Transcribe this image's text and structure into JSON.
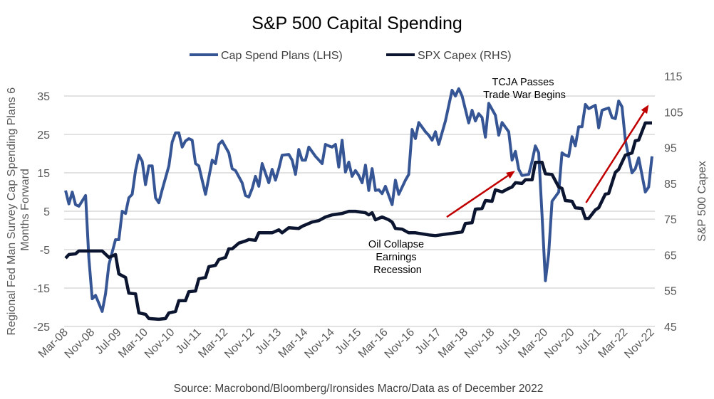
{
  "chart_data": {
    "type": "line",
    "title": "S&P 500 Capital Spending",
    "source": "Source: Macrobond/Bloomberg/Ironsides Macro/Data as of December 2022",
    "x_unit": "months since Mar-08",
    "x_tick_labels": [
      "Mar-08",
      "Nov-08",
      "Jul-09",
      "Mar-10",
      "Nov-10",
      "Jul-11",
      "Mar-12",
      "Nov-12",
      "Jul-13",
      "Mar-14",
      "Nov-14",
      "Jul-15",
      "Mar-16",
      "Nov-16",
      "Jul-17",
      "Mar-18",
      "Nov-18",
      "Jul-19",
      "Mar-20",
      "Nov-20",
      "Jul-21",
      "Mar-22",
      "Nov-22"
    ],
    "x_tick_step_months": 8,
    "xlim": [
      0,
      176
    ],
    "y_left": {
      "label_lines": [
        "Regional Fed Man Survey Cap Spending Plans 6",
        "Months Forward"
      ],
      "ticks": [
        "35",
        "25",
        "15",
        "5",
        "-5",
        "-15",
        "-25"
      ],
      "ylim": [
        -25,
        35
      ]
    },
    "y_right": {
      "label": "S&P 500 Capex",
      "ticks": [
        "115",
        "105",
        "95",
        "85",
        "75",
        "65",
        "55",
        "45"
      ],
      "ylim": [
        45,
        115
      ]
    },
    "grid": true,
    "legend_position": "top-center",
    "colors": {
      "cap_spend": "#365594",
      "spx": "#0b1530",
      "arrow": "#c00000",
      "grid": "#d9d9d9"
    },
    "series": [
      {
        "name": "Cap Spend Plans (LHS)",
        "axis": "left",
        "x": [
          0,
          1,
          2,
          3,
          4,
          6,
          7,
          8,
          9,
          11,
          12,
          13,
          15,
          16,
          17,
          18,
          19,
          20,
          21,
          22,
          23,
          24,
          25,
          26,
          27,
          28,
          29,
          31,
          32,
          33,
          34,
          35,
          36,
          37,
          38,
          39,
          40,
          42,
          44,
          45,
          46,
          47,
          49,
          50,
          51,
          53,
          54,
          55,
          56,
          57,
          58,
          59,
          61,
          62,
          63,
          64,
          65,
          67,
          68,
          69,
          70,
          71,
          72,
          73,
          75,
          77,
          78,
          79,
          80,
          81,
          82,
          83,
          84,
          85,
          86,
          87,
          88,
          89,
          90,
          91,
          92,
          93,
          94,
          95,
          96,
          98,
          99,
          100,
          102,
          103,
          104,
          105,
          106,
          108,
          109,
          110,
          111,
          112,
          114,
          116,
          117,
          118,
          119,
          121,
          122,
          123,
          124,
          125,
          126,
          127,
          129,
          130,
          131,
          133,
          134,
          135,
          136,
          137,
          139,
          140,
          141,
          142,
          143,
          144,
          145,
          146,
          148,
          149,
          150,
          151,
          152,
          153,
          154,
          155,
          156,
          157,
          159,
          160,
          161,
          163,
          164,
          165,
          166,
          167,
          168,
          170,
          171,
          172,
          174,
          175,
          176
        ],
        "y": [
          10.4,
          6.9,
          10,
          6.7,
          6.3,
          9.1,
          -7.2,
          -17.8,
          -16.9,
          -21.1,
          -16.5,
          -8.9,
          -2.4,
          -2.4,
          5,
          4.4,
          8.5,
          9.4,
          15.6,
          19.6,
          18,
          11.9,
          16.8,
          16.8,
          8.5,
          7.2,
          10.6,
          16.8,
          23,
          25.4,
          25.4,
          21.7,
          23.3,
          23.9,
          23.5,
          17.4,
          16.8,
          9.4,
          18.3,
          17.4,
          22.4,
          23.3,
          20.2,
          16.1,
          15.6,
          12.4,
          9.1,
          8.7,
          10.9,
          14.1,
          11.5,
          17.4,
          12.4,
          15.9,
          13.1,
          16.1,
          19.6,
          19.8,
          18.3,
          14.6,
          21.1,
          18.3,
          18.3,
          21.7,
          19.3,
          17.4,
          22.4,
          22,
          21.7,
          22.4,
          16.5,
          23.5,
          15.2,
          17.8,
          14.1,
          15.6,
          14.3,
          12.4,
          17,
          10.4,
          16.1,
          10.4,
          10.6,
          9.6,
          11.5,
          6.7,
          13.1,
          9.4,
          13.1,
          14.6,
          26.3,
          23.9,
          28.1,
          25.7,
          24.8,
          23.5,
          25.7,
          22.4,
          28.5,
          36.5,
          35,
          36.9,
          35,
          28,
          31.3,
          28.5,
          30.4,
          29.4,
          24.3,
          33.1,
          30,
          24.8,
          28.1,
          25.7,
          18.3,
          20.6,
          15.9,
          14.3,
          14.6,
          18,
          22,
          20.2,
          3.9,
          -13.1,
          -6.1,
          7.6,
          10,
          20.2,
          19.6,
          19.3,
          24.4,
          22,
          27,
          27,
          32.8,
          31.7,
          32.6,
          26.7,
          31.3,
          31.9,
          29.4,
          29.1,
          33.7,
          32.2,
          23.5,
          15,
          16.1,
          18.9,
          10,
          11.3,
          19.3
        ]
      },
      {
        "name": "SPX Capex (RHS)",
        "axis": "right",
        "x": [
          0,
          1,
          3,
          4,
          6,
          11,
          13,
          15,
          16,
          18,
          19,
          21,
          22,
          24,
          25,
          28,
          30,
          31,
          33,
          34,
          36,
          37,
          39,
          40,
          42,
          43,
          45,
          46,
          48,
          49,
          50,
          52,
          54,
          55,
          57,
          58,
          62,
          64,
          65,
          67,
          70,
          71,
          73,
          74,
          76,
          78,
          80,
          83,
          85,
          87,
          90,
          91,
          92,
          93,
          95,
          97,
          98,
          99,
          101,
          103,
          105,
          109,
          111,
          114,
          119,
          120,
          122,
          123,
          125,
          126,
          128,
          129,
          131,
          133,
          134,
          135,
          137,
          138,
          140,
          141,
          143,
          144,
          146,
          148,
          149,
          150,
          152,
          153,
          155,
          156,
          157,
          159,
          160,
          162,
          163,
          165,
          166,
          168,
          170,
          171,
          172,
          174,
          176
        ],
        "y": [
          64.1,
          65.1,
          65.3,
          66.1,
          66.1,
          66.1,
          64.3,
          65.1,
          59.7,
          58.7,
          54.3,
          54.1,
          48.8,
          48.4,
          47.2,
          47,
          47.2,
          48.8,
          49.2,
          52.2,
          52.2,
          54.7,
          54.9,
          58.3,
          58.7,
          61.7,
          62.1,
          63.7,
          64.3,
          66.7,
          66.7,
          68.3,
          68.9,
          69.3,
          69.1,
          71.2,
          71.2,
          72,
          71.2,
          72.6,
          72.4,
          73,
          73.8,
          74.2,
          74.6,
          75.6,
          76.2,
          76.6,
          77.2,
          77.2,
          76.8,
          76.2,
          76.8,
          74.8,
          75.6,
          74.8,
          74.2,
          72.4,
          72.2,
          71.2,
          71.2,
          70.6,
          70.4,
          70.8,
          71.4,
          73.8,
          74,
          77.8,
          78,
          80.2,
          80,
          83.2,
          82.6,
          83.6,
          84,
          85.2,
          85,
          86,
          86,
          90.9,
          90.9,
          87.7,
          87.5,
          84,
          83.6,
          80.2,
          80,
          78.2,
          78,
          75.2,
          75.2,
          77.6,
          78.2,
          82,
          82.2,
          88.1,
          88.9,
          92.9,
          93.5,
          96.9,
          97.1,
          101.9,
          101.9
        ]
      }
    ],
    "arrows": [
      {
        "axis": "right",
        "from": [
          114.4,
          75.6
        ],
        "to": [
          134.9,
          88.5
        ]
      },
      {
        "axis": "right",
        "from": [
          156.2,
          79.6
        ],
        "to": [
          175,
          107
        ]
      }
    ],
    "annotations": [
      {
        "lines": [
          "TCJA Passes",
          "Trade War Begins"
        ]
      },
      {
        "lines": [
          "Oil Collapse",
          "Earnings",
          "Recession"
        ]
      }
    ]
  }
}
